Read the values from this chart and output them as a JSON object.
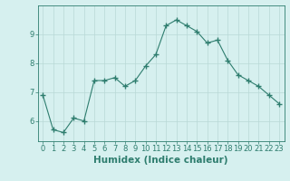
{
  "x": [
    0,
    1,
    2,
    3,
    4,
    5,
    6,
    7,
    8,
    9,
    10,
    11,
    12,
    13,
    14,
    15,
    16,
    17,
    18,
    19,
    20,
    21,
    22,
    23
  ],
  "y": [
    6.9,
    5.7,
    5.6,
    6.1,
    6.0,
    7.4,
    7.4,
    7.5,
    7.2,
    7.4,
    7.9,
    8.3,
    9.3,
    9.5,
    9.3,
    9.1,
    8.7,
    8.8,
    8.1,
    7.6,
    7.4,
    7.2,
    6.9,
    6.6
  ],
  "line_color": "#2e7d6e",
  "marker": "+",
  "marker_size": 4,
  "bg_color": "#d6f0ef",
  "grid_color": "#b8d8d6",
  "axis_color": "#2e7d6e",
  "xlabel": "Humidex (Indice chaleur)",
  "xlim": [
    -0.5,
    23.5
  ],
  "ylim": [
    5.3,
    10.0
  ],
  "yticks": [
    6,
    7,
    8,
    9
  ],
  "xticks": [
    0,
    1,
    2,
    3,
    4,
    5,
    6,
    7,
    8,
    9,
    10,
    11,
    12,
    13,
    14,
    15,
    16,
    17,
    18,
    19,
    20,
    21,
    22,
    23
  ],
  "tick_label_fontsize": 6,
  "xlabel_fontsize": 7.5
}
